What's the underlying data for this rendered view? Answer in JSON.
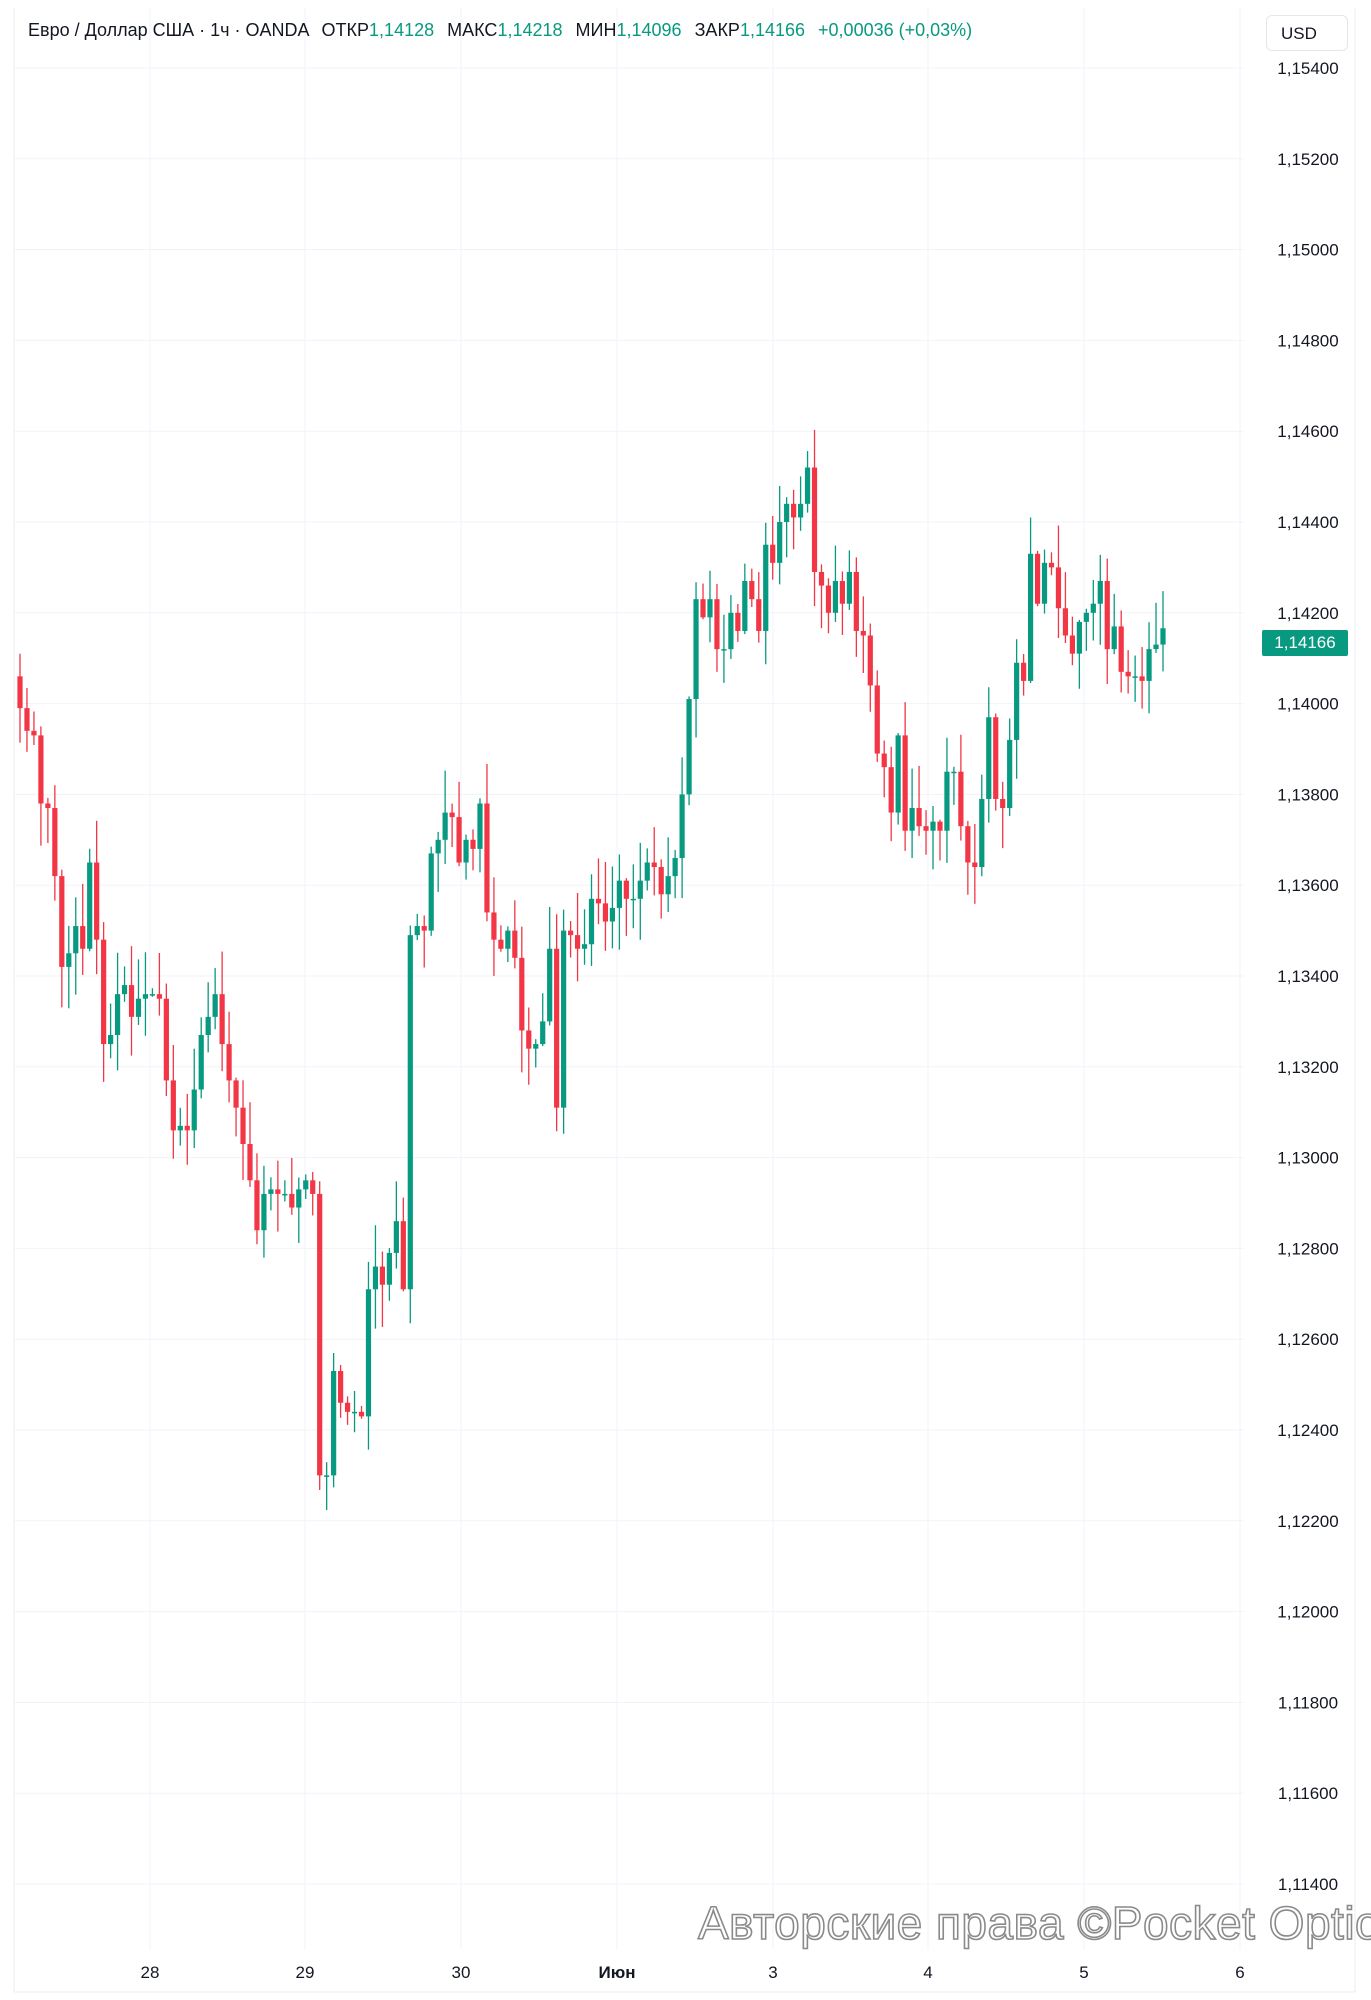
{
  "legend": {
    "symbol": "Евро / Доллар США · 1ч · OANDA",
    "open_label": "ОТКР",
    "open": "1,14128",
    "high_label": "МАКС",
    "high": "1,14218",
    "low_label": "МИН",
    "low": "1,14096",
    "close_label": "ЗАКР",
    "close": "1,14166",
    "change": "+0,00036 (+0,03%)"
  },
  "currency_button": "USD",
  "last_price_badge": "1,14166",
  "watermark": "Авторские права ©Pocket Option",
  "colors": {
    "up": "#089981",
    "down": "#f23645",
    "grid": "#f0f3fa"
  },
  "chart_data": {
    "type": "candlestick",
    "title": "Евро / Доллар США · 1ч · OANDA",
    "ylim": [
      1.114,
      1.154
    ],
    "y_ticks": [
      "1,15400",
      "1,15200",
      "1,15000",
      "1,14800",
      "1,14600",
      "1,14400",
      "1,14200",
      "1,14000",
      "1,13800",
      "1,13600",
      "1,13400",
      "1,13200",
      "1,13000",
      "1,12800",
      "1,12600",
      "1,12400",
      "1,12200",
      "1,12000",
      "1,11800",
      "1,11600",
      "1,11400"
    ],
    "x_ticks": [
      "28",
      "29",
      "30",
      "Июн",
      "3",
      "4",
      "5",
      "6"
    ],
    "first_open": 1.1406,
    "closes": [
      1.1399,
      1.1394,
      1.1393,
      1.1378,
      1.1377,
      1.1362,
      1.1342,
      1.1345,
      1.1351,
      1.1346,
      1.1365,
      1.1348,
      1.1325,
      1.1327,
      1.1336,
      1.1338,
      1.1331,
      1.1335,
      1.1336,
      1.1336,
      1.1335,
      1.1317,
      1.1306,
      1.1307,
      1.1306,
      1.1315,
      1.1327,
      1.1331,
      1.1336,
      1.1325,
      1.1317,
      1.1311,
      1.1303,
      1.1295,
      1.1284,
      1.1292,
      1.1293,
      1.1292,
      1.1292,
      1.1289,
      1.1293,
      1.1295,
      1.1292,
      1.123,
      1.123,
      1.1253,
      1.1246,
      1.1244,
      1.1244,
      1.1243,
      1.1271,
      1.1276,
      1.1272,
      1.1279,
      1.1286,
      1.1271,
      1.1349,
      1.1351,
      1.135,
      1.1367,
      1.137,
      1.1376,
      1.1375,
      1.1365,
      1.137,
      1.1368,
      1.1378,
      1.1354,
      1.1348,
      1.1346,
      1.135,
      1.1344,
      1.1328,
      1.1324,
      1.1325,
      1.133,
      1.1346,
      1.1311,
      1.135,
      1.1349,
      1.1346,
      1.1347,
      1.1357,
      1.1356,
      1.1352,
      1.1355,
      1.1361,
      1.1357,
      1.1357,
      1.1361,
      1.1365,
      1.1364,
      1.1358,
      1.1362,
      1.1366,
      1.138,
      1.1401,
      1.1423,
      1.1419,
      1.1423,
      1.1412,
      1.1412,
      1.142,
      1.1416,
      1.1427,
      1.1423,
      1.1416,
      1.1435,
      1.1431,
      1.144,
      1.1444,
      1.1441,
      1.1444,
      1.1452,
      1.1429,
      1.1426,
      1.142,
      1.1427,
      1.1422,
      1.1429,
      1.1416,
      1.1415,
      1.1404,
      1.1389,
      1.1386,
      1.1376,
      1.1393,
      1.1372,
      1.1377,
      1.1373,
      1.1372,
      1.1374,
      1.1372,
      1.1385,
      1.1385,
      1.1373,
      1.1365,
      1.1364,
      1.1379,
      1.1397,
      1.1379,
      1.1377,
      1.1392,
      1.1409,
      1.1405,
      1.1433,
      1.1422,
      1.1431,
      1.143,
      1.1421,
      1.1415,
      1.1411,
      1.1418,
      1.142,
      1.1422,
      1.1427,
      1.1412,
      1.1417,
      1.1407,
      1.1406,
      1.1406,
      1.1405,
      1.1412,
      1.1413,
      1.14166
    ]
  }
}
